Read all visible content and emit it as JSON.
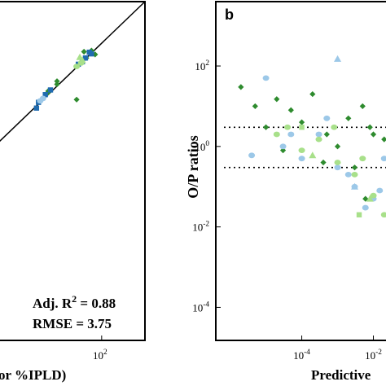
{
  "chart_data": [
    {
      "type": "scatter",
      "panel_label": "",
      "xlabel": "or %IPLD)",
      "x_scale": "log",
      "x_ticks": [
        {
          "value": 100,
          "label": "10",
          "exp": "2"
        }
      ],
      "xlim": [
        0.03,
        3000
      ],
      "ylim": [
        0.03,
        3000
      ],
      "fit_line": {
        "from": [
          0.03,
          0.03
        ],
        "to": [
          3000,
          3000
        ]
      },
      "annotations": [
        {
          "label": "Adj. R",
          "sup": "2",
          "rest": " =  0.88"
        },
        {
          "label": "RMSE = 3.75"
        }
      ],
      "series": [
        {
          "marker": "diamond",
          "color": "#2e8b2e",
          "x": [
            1.5,
            3,
            1.5,
            30,
            25,
            45,
            60,
            14,
            3
          ],
          "y": [
            2,
            3.5,
            1.8,
            30,
            50,
            55,
            40,
            1,
            4.5
          ]
        },
        {
          "marker": "square",
          "color": "#1f6bb0",
          "x": [
            0.7,
            1.2,
            0.6,
            16,
            22,
            28,
            38,
            45,
            1.8
          ],
          "y": [
            0.8,
            1.5,
            0.5,
            18,
            22,
            30,
            48,
            42,
            2.2
          ]
        },
        {
          "marker": "triangle",
          "color": "#a8e08a",
          "x": [
            18,
            22
          ],
          "y": [
            32,
            25
          ]
        },
        {
          "marker": "circle",
          "color": "#a8e08a",
          "x": [
            20,
            14
          ],
          "y": [
            20,
            15
          ]
        },
        {
          "marker": "circle",
          "color": "#9cc8e8",
          "x": [
            1,
            0.8
          ],
          "y": [
            1.1,
            0.9
          ]
        }
      ]
    },
    {
      "type": "scatter",
      "panel_label": "b",
      "ylabel": "O/P ratios",
      "xlabel": "Predictive",
      "x_scale": "log",
      "y_scale": "log",
      "y_ticks": [
        {
          "value": 100,
          "label": "10",
          "exp": "2"
        },
        {
          "value": 1,
          "label": "10",
          "exp": "0"
        },
        {
          "value": 0.01,
          "label": "10",
          "exp": "-2"
        },
        {
          "value": 0.0001,
          "label": "10",
          "exp": "-4"
        }
      ],
      "x_ticks": [
        {
          "value": 0.0001,
          "label": "10",
          "exp": "-4"
        },
        {
          "value": 0.01,
          "label": "10",
          "exp": "-2"
        }
      ],
      "xlim": [
        3.98e-07,
        0.04
      ],
      "ylim": [
        1.51e-05,
        3980
      ],
      "reference_lines": [
        3,
        0.3
      ],
      "series": [
        {
          "marker": "diamond",
          "color": "#2e8b2e",
          "x": [
            2e-06,
            5e-06,
            1e-05,
            2e-05,
            5e-05,
            0.0001,
            0.0002,
            0.0005,
            0.001,
            0.002,
            0.003,
            0.005,
            0.008,
            0.01,
            0.02,
            0.0004,
            3e-05,
            0.006
          ],
          "y": [
            30,
            10,
            3,
            15,
            8,
            4,
            20,
            2,
            1,
            5,
            0.3,
            10,
            3,
            2,
            1.5,
            0.4,
            0.8,
            0.05
          ]
        },
        {
          "marker": "circle",
          "color": "#9cc8e8",
          "x": [
            1e-05,
            3e-05,
            0.0001,
            0.0003,
            0.001,
            0.003,
            0.01,
            0.02,
            0.0005,
            5e-05,
            4e-06,
            0.002,
            0.006,
            0.015
          ],
          "y": [
            50,
            1,
            0.5,
            2,
            0.3,
            0.1,
            0.05,
            0.5,
            5,
            2,
            0.6,
            0.2,
            0.03,
            0.08
          ]
        },
        {
          "marker": "circle",
          "color": "#a8e08a",
          "x": [
            2e-05,
            0.0001,
            0.0003,
            0.001,
            0.003,
            0.01,
            0.02,
            0.0008,
            0.005,
            4e-05
          ],
          "y": [
            2,
            0.8,
            1.5,
            0.4,
            0.2,
            0.06,
            0.02,
            3,
            0.5,
            3
          ]
        },
        {
          "marker": "triangle",
          "color": "#9cc8e8",
          "x": [
            0.001,
            0.003
          ],
          "y": [
            150,
            0.1
          ]
        },
        {
          "marker": "triangle",
          "color": "#a8e08a",
          "x": [
            0.0002,
            0.008
          ],
          "y": [
            0.6,
            0.05
          ]
        },
        {
          "marker": "triangle",
          "color": "#1f6bb0",
          "x": [
            0.03
          ],
          "y": [
            2
          ]
        },
        {
          "marker": "square",
          "color": "#a8e08a",
          "x": [
            0.0001,
            0.004
          ],
          "y": [
            3,
            0.02
          ]
        }
      ]
    }
  ]
}
